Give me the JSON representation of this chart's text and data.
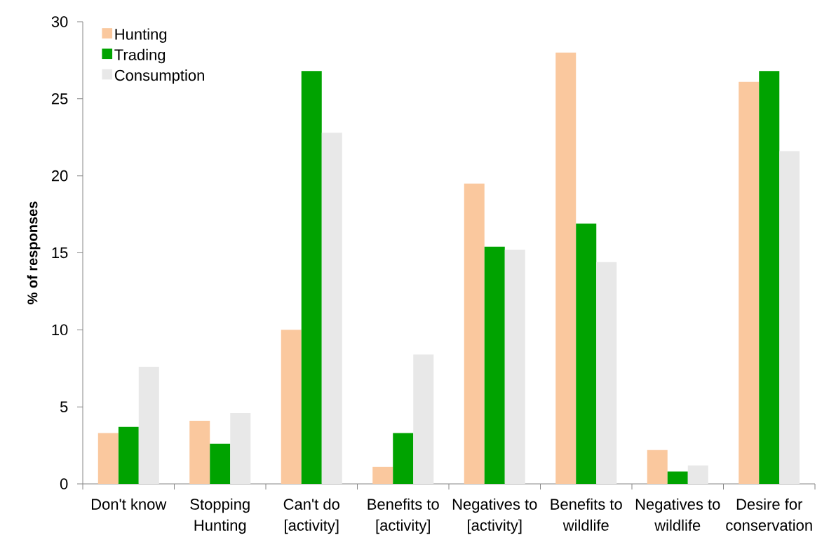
{
  "chart_data": {
    "type": "bar",
    "ylabel": "% of responses",
    "categories": [
      "Don't know",
      "Stopping Hunting",
      "Can't do [activity]",
      "Benefits to [activity]",
      "Negatives to [activity]",
      "Benefits to wildlife",
      "Negatives to wildlife",
      "Desire for conservation"
    ],
    "series": [
      {
        "name": "Hunting",
        "color": "#FAC89E",
        "values": [
          3.3,
          4.1,
          10.0,
          1.1,
          19.5,
          28.0,
          2.2,
          26.1
        ]
      },
      {
        "name": "Trading",
        "color": "#00A300",
        "values": [
          3.7,
          2.6,
          26.8,
          3.3,
          15.4,
          16.9,
          0.8,
          26.8
        ]
      },
      {
        "name": "Consumption",
        "color": "#E8E8E8",
        "values": [
          7.6,
          4.6,
          22.8,
          8.4,
          15.2,
          14.4,
          1.2,
          21.6
        ]
      }
    ],
    "ylim": [
      0,
      30
    ],
    "yticks": [
      0,
      5,
      10,
      15,
      20,
      25,
      30
    ],
    "legend": "top left"
  }
}
